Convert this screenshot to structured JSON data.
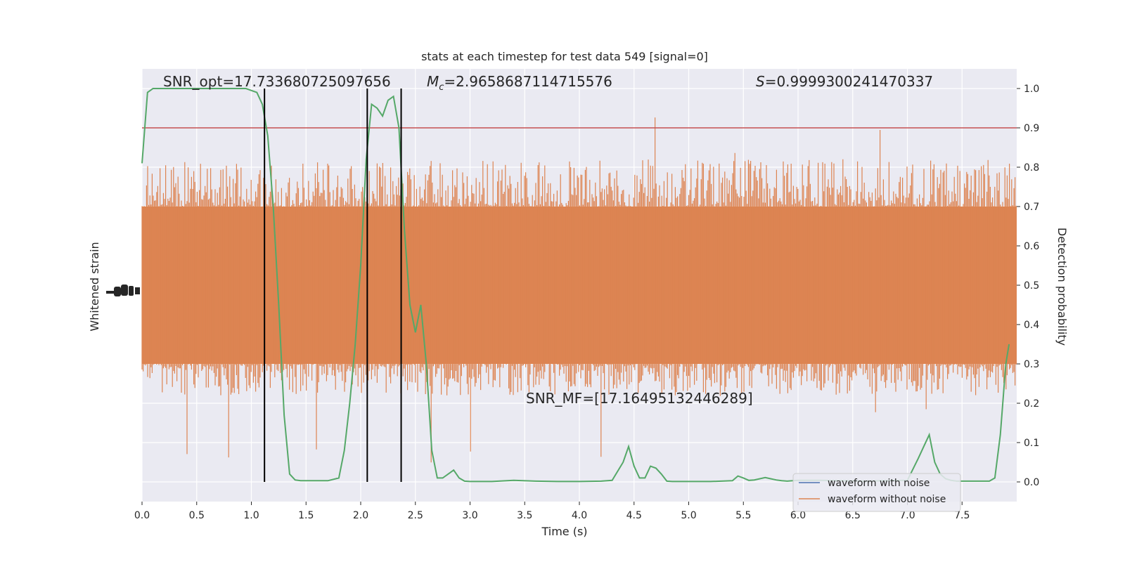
{
  "colors": {
    "plot_bg": "#EAEAF2",
    "grid": "#FFFFFF",
    "noisy": "#4C72B0",
    "clean": "#DD8452",
    "prob": "#55A868",
    "threshold": "#C44E52",
    "markers": "#000000"
  },
  "chart_data": {
    "type": "line",
    "title": "stats at each timestep for test data 549 [signal=0]",
    "xlabel": "Time (s)",
    "ylabel_left": "Whitened strain",
    "ylabel_right": "Detection probability",
    "xlim": [
      0,
      8
    ],
    "ylim_right": [
      -0.05,
      1.05
    ],
    "xticks": [
      "0.0",
      "0.5",
      "1.0",
      "1.5",
      "2.0",
      "2.5",
      "3.0",
      "3.5",
      "4.0",
      "4.5",
      "5.0",
      "5.5",
      "6.0",
      "6.5",
      "7.0",
      "7.5"
    ],
    "yticks_right": [
      "0.0",
      "0.1",
      "0.2",
      "0.3",
      "0.4",
      "0.5",
      "0.6",
      "0.7",
      "0.8",
      "0.9",
      "1.0"
    ],
    "grid": true,
    "legend_position": "lower right",
    "legend": [
      "waveform with noise",
      "waveform without noise"
    ],
    "annotations": {
      "snr_opt": "SNR_opt=17.733680725097656",
      "mc_symbol": "M",
      "mc_sub": "c",
      "mc_value": "=2.9658687114715576",
      "s_symbol": "S",
      "s_value": "=0.9999300241470337",
      "snr_mf": "SNR_MF=[17.16495132446289]"
    },
    "threshold": 0.9,
    "vertical_markers": [
      1.12,
      2.06,
      2.37
    ],
    "strain_band": {
      "dense_band": [
        0.3,
        0.7
      ],
      "typical_spikes": [
        0.22,
        0.82
      ],
      "extreme": [
        0.0,
        1.0
      ]
    },
    "detection_probability": {
      "x": [
        0.0,
        0.05,
        0.1,
        0.2,
        0.4,
        0.6,
        0.8,
        0.95,
        1.0,
        1.05,
        1.1,
        1.15,
        1.2,
        1.25,
        1.3,
        1.35,
        1.4,
        1.45,
        1.5,
        1.6,
        1.7,
        1.8,
        1.85,
        1.9,
        1.95,
        2.0,
        2.05,
        2.1,
        2.15,
        2.2,
        2.25,
        2.3,
        2.35,
        2.4,
        2.45,
        2.5,
        2.55,
        2.6,
        2.65,
        2.7,
        2.75,
        2.8,
        2.85,
        2.9,
        2.95,
        3.0,
        3.2,
        3.4,
        3.6,
        3.8,
        4.0,
        4.2,
        4.3,
        4.4,
        4.45,
        4.5,
        4.55,
        4.6,
        4.65,
        4.7,
        4.75,
        4.8,
        4.85,
        4.9,
        5.0,
        5.2,
        5.4,
        5.45,
        5.5,
        5.55,
        5.6,
        5.7,
        5.75,
        5.8,
        5.85,
        5.9,
        6.0,
        6.2,
        6.4,
        6.6,
        6.8,
        7.0,
        7.1,
        7.15,
        7.2,
        7.25,
        7.3,
        7.35,
        7.4,
        7.45,
        7.5,
        7.6,
        7.7,
        7.75,
        7.8,
        7.85,
        7.9,
        7.93
      ],
      "y": [
        0.81,
        0.99,
        1.0,
        1.0,
        1.0,
        1.0,
        1.0,
        1.0,
        0.995,
        0.99,
        0.96,
        0.88,
        0.7,
        0.45,
        0.17,
        0.02,
        0.005,
        0.003,
        0.003,
        0.003,
        0.003,
        0.01,
        0.08,
        0.2,
        0.35,
        0.55,
        0.82,
        0.96,
        0.95,
        0.93,
        0.97,
        0.98,
        0.9,
        0.64,
        0.45,
        0.38,
        0.45,
        0.3,
        0.08,
        0.01,
        0.01,
        0.02,
        0.03,
        0.01,
        0.002,
        0.001,
        0.001,
        0.004,
        0.002,
        0.001,
        0.001,
        0.002,
        0.004,
        0.05,
        0.09,
        0.04,
        0.01,
        0.01,
        0.04,
        0.035,
        0.02,
        0.002,
        0.001,
        0.001,
        0.001,
        0.001,
        0.003,
        0.015,
        0.01,
        0.004,
        0.005,
        0.011,
        0.008,
        0.005,
        0.003,
        0.002,
        0.004,
        0.004,
        0.003,
        0.002,
        0.003,
        0.004,
        0.06,
        0.09,
        0.12,
        0.05,
        0.02,
        0.008,
        0.004,
        0.002,
        0.002,
        0.002,
        0.002,
        0.002,
        0.01,
        0.12,
        0.3,
        0.35
      ]
    }
  }
}
